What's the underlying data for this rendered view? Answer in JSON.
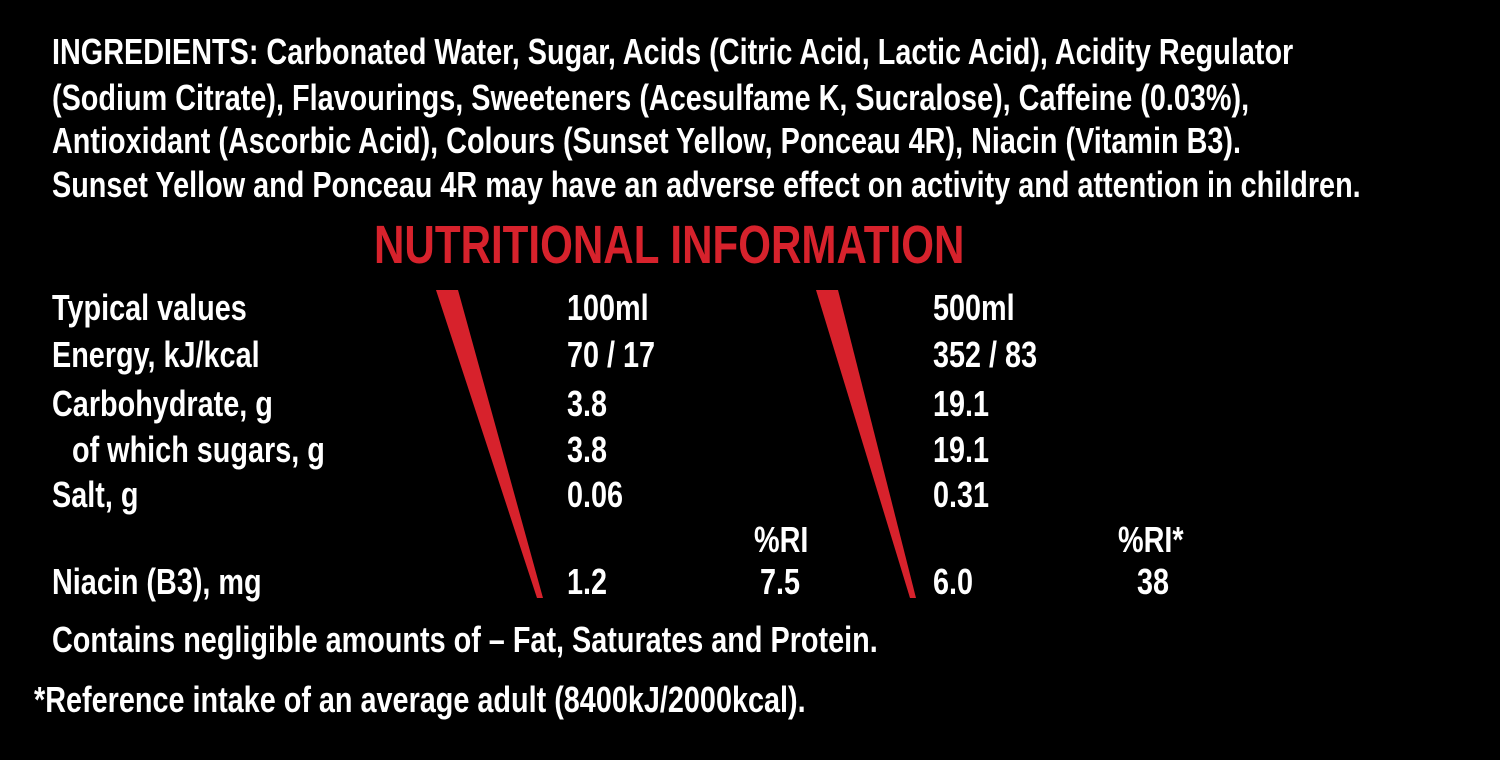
{
  "ingredients": {
    "lines": [
      "INGREDIENTS: Carbonated Water, Sugar, Acids (Citric Acid, Lactic Acid), Acidity Regulator",
      "(Sodium Citrate), Flavourings, Sweeteners (Acesulfame K, Sucralose), Caffeine (0.03%),",
      "Antioxidant (Ascorbic Acid), Colours (Sunset Yellow, Ponceau 4R), Niacin (Vitamin B3).",
      "Sunset Yellow and Ponceau 4R may have an adverse effect on activity and attention in children."
    ]
  },
  "nutrition": {
    "title": "NUTRITIONAL INFORMATION",
    "header": [
      "Typical values",
      "100ml",
      "500ml"
    ],
    "rows": [
      [
        "Energy, kJ/kcal",
        "70 / 17",
        "352 / 83"
      ],
      [
        "Carbohydrate, g",
        "3.8",
        "19.1"
      ],
      [
        "of which sugars, g",
        "3.8",
        "19.1"
      ],
      [
        "Salt, g",
        "0.06",
        "0.31"
      ]
    ],
    "ri_header": [
      "%RI",
      "%RI*"
    ],
    "niacin": {
      "label": "Niacin (B3), mg",
      "per_100ml": "1.2",
      "ri_100ml": "7.5",
      "per_500ml": "6.0",
      "ri_500ml": "38"
    },
    "note": "Contains negligible amounts of – Fat, Saturates and Protein.",
    "footnote": "*Reference intake of an average adult (8400kJ/2000kcal)."
  }
}
